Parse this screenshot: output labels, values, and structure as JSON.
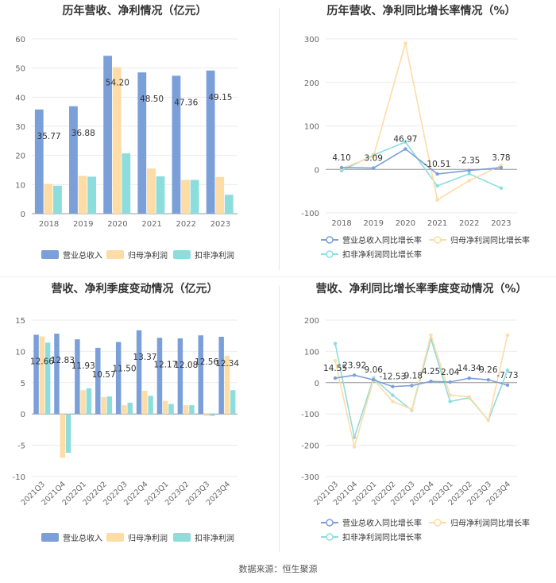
{
  "source_label": "数据来源：恒生聚源",
  "colors": {
    "revenue": "#7b9fd9",
    "net_profit": "#fddca6",
    "deducted": "#8ddddd",
    "revenue_line": "#7b9fd9",
    "net_line": "#fddca6",
    "deducted_line": "#8ddddd"
  },
  "chart_data": [
    {
      "type": "bar",
      "title": "历年营收、净利情况（亿元）",
      "categories": [
        "2018",
        "2019",
        "2020",
        "2021",
        "2022",
        "2023"
      ],
      "series": [
        {
          "name": "营业总收入",
          "values": [
            35.77,
            36.88,
            54.2,
            48.5,
            47.36,
            49.15
          ]
        },
        {
          "name": "归母净利润",
          "values": [
            10.2,
            13.0,
            50.3,
            15.5,
            11.6,
            12.6
          ]
        },
        {
          "name": "扣非净利润",
          "values": [
            9.6,
            12.7,
            20.7,
            12.8,
            11.6,
            6.5
          ]
        }
      ],
      "data_labels": [
        "35.77",
        "36.88",
        "54.20",
        "48.50",
        "47.36",
        "49.15"
      ],
      "ylim": [
        0,
        60
      ],
      "yticks": [
        0,
        10,
        20,
        30,
        40,
        50,
        60
      ],
      "grid": true,
      "legend": "bottom"
    },
    {
      "type": "line",
      "title": "历年营收、净利同比增长率情况（%）",
      "categories": [
        "2018",
        "2019",
        "2020",
        "2021",
        "2022",
        "2023"
      ],
      "series": [
        {
          "name": "营业总收入同比增长率",
          "values": [
            4.1,
            3.09,
            46.97,
            -10.51,
            -2.35,
            3.78
          ]
        },
        {
          "name": "归母净利润同比增长率",
          "values": [
            2,
            30,
            290,
            -70,
            -26,
            9
          ]
        },
        {
          "name": "扣非净利润同比增长率",
          "values": [
            -3,
            33,
            63,
            -38,
            -10,
            -43
          ]
        }
      ],
      "data_labels": [
        "4.10",
        "3.09",
        "46.97",
        "-10.51",
        "-2.35",
        "3.78"
      ],
      "ylim": [
        -100,
        300
      ],
      "yticks": [
        -100,
        0,
        100,
        200,
        300
      ],
      "grid": true,
      "legend": "bottom"
    },
    {
      "type": "bar",
      "title": "营收、净利季度变动情况（亿元）",
      "categories": [
        "2021Q3",
        "2021Q4",
        "2022Q1",
        "2022Q2",
        "2022Q3",
        "2022Q4",
        "2023Q1",
        "2023Q2",
        "2023Q3",
        "2023Q4"
      ],
      "series": [
        {
          "name": "营业总收入",
          "values": [
            12.66,
            12.83,
            11.93,
            10.57,
            11.5,
            13.37,
            12.17,
            12.08,
            12.56,
            12.34
          ]
        },
        {
          "name": "归母净利润",
          "values": [
            12.4,
            -7.0,
            3.8,
            2.7,
            1.4,
            3.7,
            2.1,
            1.4,
            -0.3,
            9.3
          ]
        },
        {
          "name": "扣非净利润",
          "values": [
            11.4,
            -6.2,
            4.1,
            2.8,
            1.8,
            2.9,
            1.6,
            1.4,
            -0.3,
            3.8
          ]
        }
      ],
      "data_labels": [
        "12.66",
        "12.83",
        "11.93",
        "10.57",
        "11.50",
        "13.37",
        "12.17",
        "12.08",
        "12.56",
        "12.34"
      ],
      "ylim": [
        -10,
        15
      ],
      "yticks": [
        -10,
        -5,
        0,
        5,
        10,
        15
      ],
      "grid": true,
      "legend": "bottom"
    },
    {
      "type": "line",
      "title": "营收、净利同比增长率季度变动情况（%）",
      "categories": [
        "2021Q3",
        "2021Q4",
        "2022Q1",
        "2022Q2",
        "2022Q3",
        "2022Q4",
        "2023Q1",
        "2023Q2",
        "2023Q3",
        "2023Q4"
      ],
      "series": [
        {
          "name": "营业总收入同比增长率",
          "values": [
            14.55,
            23.92,
            9.06,
            -12.53,
            -9.18,
            4.25,
            2.04,
            14.34,
            9.26,
            -7.73
          ]
        },
        {
          "name": "归母净利润同比增长率",
          "values": [
            70,
            -205,
            10,
            -60,
            -85,
            152,
            -40,
            -45,
            -120,
            152
          ]
        },
        {
          "name": "扣非净利润同比增长率",
          "values": [
            125,
            -175,
            15,
            -40,
            -88,
            140,
            -60,
            -48,
            -120,
            40
          ]
        }
      ],
      "data_labels": [
        "14.55",
        "23.92",
        "9.06",
        "-12.53",
        "-9.18",
        "4.25",
        "2.04",
        "14.34",
        "9.26",
        "-7.73"
      ],
      "ylim": [
        -300,
        200
      ],
      "yticks": [
        -300,
        -200,
        -100,
        0,
        100,
        200
      ],
      "grid": true,
      "legend": "bottom"
    }
  ]
}
